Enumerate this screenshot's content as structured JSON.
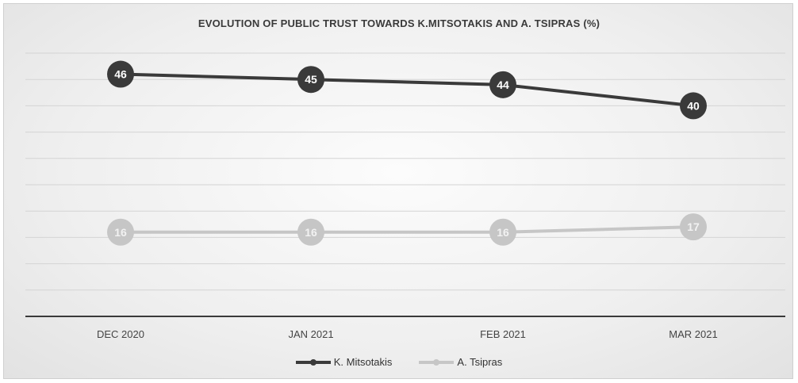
{
  "chart_data": {
    "type": "line",
    "title": "EVOLUTION OF PUBLIC TRUST TOWARDS K.MITSOTAKIS AND A. TSIPRAS (%)",
    "categories": [
      "DEC 2020",
      "JAN 2021",
      "FEB 2021",
      "MAR 2021"
    ],
    "series": [
      {
        "name": "K. Mitsotakis",
        "values": [
          46,
          45,
          44,
          40
        ],
        "color": "#3a3a3a",
        "label_color": "#ffffff"
      },
      {
        "name": "A. Tsipras",
        "values": [
          16,
          16,
          16,
          17
        ],
        "color": "#c6c6c6",
        "label_color": "#f2f2f2"
      }
    ],
    "ylim": [
      0,
      50
    ],
    "grid": true,
    "legend": "bottom"
  }
}
